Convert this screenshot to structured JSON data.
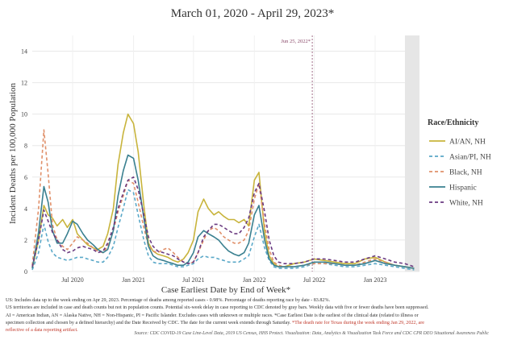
{
  "chart_data": {
    "type": "line",
    "title": "March 01, 2020 - April 29, 2023*",
    "xlabel": "Case Earliest Date by End of Week*",
    "ylabel": "Incident Deaths per 100,000 Population",
    "ylim": [
      0,
      15
    ],
    "yticks": [
      0,
      2,
      4,
      6,
      8,
      10,
      12,
      14
    ],
    "xlim": [
      "2020-03-01",
      "2023-05-15"
    ],
    "xticks": [
      {
        "date": "2020-07-01",
        "label": "Jul 2020"
      },
      {
        "date": "2021-01-01",
        "label": "Jan 2021"
      },
      {
        "date": "2021-07-01",
        "label": "Jul 2021"
      },
      {
        "date": "2022-01-01",
        "label": "Jan 2022"
      },
      {
        "date": "2022-07-01",
        "label": "Jul 2022"
      },
      {
        "date": "2023-01-01",
        "label": "Jan 2023"
      }
    ],
    "grid": true,
    "legend_position": "right",
    "legend_title": "Race/Ethnicity",
    "annotation": {
      "date": "2022-06-25",
      "label": "Jun 25, 2022*"
    },
    "shaded_region": {
      "start": "2023-04-01",
      "end": "2023-05-15"
    },
    "x": [
      "2020-03-01",
      "2020-03-20",
      "2020-04-05",
      "2020-04-18",
      "2020-05-01",
      "2020-05-15",
      "2020-06-01",
      "2020-06-15",
      "2020-07-01",
      "2020-07-15",
      "2020-08-01",
      "2020-08-15",
      "2020-09-01",
      "2020-09-15",
      "2020-10-01",
      "2020-10-15",
      "2020-11-01",
      "2020-11-15",
      "2020-12-01",
      "2020-12-15",
      "2021-01-01",
      "2021-01-15",
      "2021-02-01",
      "2021-02-15",
      "2021-03-01",
      "2021-03-15",
      "2021-04-01",
      "2021-04-15",
      "2021-05-01",
      "2021-05-15",
      "2021-06-01",
      "2021-06-15",
      "2021-07-01",
      "2021-07-15",
      "2021-08-01",
      "2021-08-15",
      "2021-09-01",
      "2021-09-15",
      "2021-10-01",
      "2021-10-15",
      "2021-11-01",
      "2021-11-15",
      "2021-12-01",
      "2021-12-15",
      "2022-01-01",
      "2022-01-15",
      "2022-02-01",
      "2022-02-15",
      "2022-03-01",
      "2022-03-15",
      "2022-04-01",
      "2022-05-01",
      "2022-06-01",
      "2022-07-01",
      "2022-08-01",
      "2022-09-01",
      "2022-10-01",
      "2022-11-01",
      "2022-12-01",
      "2023-01-01",
      "2023-02-01",
      "2023-03-01",
      "2023-04-01",
      "2023-04-29"
    ],
    "series": [
      {
        "name": "AI/AN, NH",
        "color": "#c8b43c",
        "dash": "solid",
        "values": [
          0.2,
          2.0,
          4.2,
          3.6,
          3.4,
          2.9,
          3.3,
          2.8,
          3.3,
          2.4,
          2.0,
          1.7,
          1.5,
          1.4,
          1.6,
          2.4,
          4.0,
          6.8,
          8.8,
          10.0,
          9.4,
          7.6,
          4.2,
          1.8,
          1.3,
          1.1,
          1.0,
          0.9,
          0.7,
          0.6,
          0.8,
          1.2,
          2.0,
          3.8,
          4.6,
          4.0,
          3.6,
          3.8,
          3.5,
          3.3,
          3.3,
          3.1,
          3.3,
          2.9,
          5.8,
          6.3,
          2.5,
          1.0,
          0.5,
          0.3,
          0.3,
          0.5,
          0.6,
          0.8,
          0.7,
          0.6,
          0.5,
          0.5,
          0.8,
          0.9,
          0.6,
          0.4,
          0.3,
          0.2
        ]
      },
      {
        "name": "Asian/PI, NH",
        "color": "#5aa8c8",
        "dash": "4,3",
        "values": [
          0.1,
          1.2,
          3.0,
          1.9,
          1.2,
          0.9,
          0.8,
          0.7,
          0.8,
          0.9,
          0.9,
          0.8,
          0.7,
          0.6,
          0.6,
          0.9,
          1.6,
          2.8,
          4.0,
          5.2,
          5.0,
          3.6,
          2.0,
          1.0,
          0.6,
          0.5,
          0.5,
          0.5,
          0.4,
          0.3,
          0.3,
          0.4,
          0.5,
          0.8,
          1.0,
          0.9,
          0.9,
          0.8,
          0.7,
          0.6,
          0.6,
          0.6,
          0.8,
          1.0,
          2.2,
          3.0,
          1.5,
          0.7,
          0.3,
          0.2,
          0.2,
          0.2,
          0.3,
          0.5,
          0.5,
          0.4,
          0.3,
          0.3,
          0.4,
          0.5,
          0.4,
          0.3,
          0.2,
          0.1
        ]
      },
      {
        "name": "Black, NH",
        "color": "#e0906a",
        "dash": "4,3",
        "values": [
          0.4,
          4.0,
          9.0,
          6.2,
          3.0,
          2.0,
          1.6,
          1.4,
          1.8,
          2.2,
          2.0,
          1.8,
          1.5,
          1.3,
          1.2,
          1.6,
          2.6,
          3.8,
          4.8,
          5.8,
          5.6,
          4.4,
          2.8,
          1.6,
          1.3,
          1.2,
          1.4,
          1.5,
          1.2,
          0.9,
          0.6,
          0.5,
          0.6,
          1.2,
          2.0,
          2.6,
          2.8,
          2.6,
          2.2,
          2.0,
          1.8,
          1.8,
          2.0,
          2.6,
          4.6,
          5.6,
          3.0,
          1.4,
          0.6,
          0.4,
          0.3,
          0.3,
          0.4,
          0.5,
          0.5,
          0.5,
          0.4,
          0.4,
          0.6,
          0.8,
          0.6,
          0.4,
          0.3,
          0.2
        ]
      },
      {
        "name": "Hispanic",
        "color": "#3a8090",
        "dash": "solid",
        "values": [
          0.2,
          2.5,
          5.4,
          4.4,
          2.6,
          1.8,
          1.8,
          2.4,
          3.2,
          3.0,
          2.4,
          2.0,
          1.7,
          1.4,
          1.2,
          1.4,
          2.6,
          4.8,
          6.4,
          7.4,
          7.2,
          5.8,
          3.4,
          1.6,
          1.0,
          0.8,
          0.7,
          0.6,
          0.5,
          0.4,
          0.4,
          0.6,
          1.2,
          2.2,
          2.6,
          2.4,
          2.2,
          2.0,
          1.6,
          1.3,
          1.1,
          1.0,
          1.2,
          1.8,
          3.6,
          4.2,
          2.0,
          0.8,
          0.4,
          0.3,
          0.3,
          0.3,
          0.4,
          0.6,
          0.6,
          0.5,
          0.4,
          0.4,
          0.5,
          0.7,
          0.5,
          0.4,
          0.3,
          0.2
        ]
      },
      {
        "name": "White, NH",
        "color": "#6a3a80",
        "dash": "4,3",
        "values": [
          0.3,
          2.0,
          3.9,
          3.2,
          2.5,
          2.0,
          1.4,
          1.2,
          1.3,
          1.5,
          1.6,
          1.5,
          1.4,
          1.2,
          1.3,
          1.8,
          2.8,
          4.0,
          5.0,
          5.8,
          6.0,
          5.2,
          3.6,
          2.2,
          1.6,
          1.3,
          1.2,
          1.1,
          1.0,
          0.8,
          0.6,
          0.5,
          0.6,
          1.2,
          2.2,
          2.6,
          3.0,
          3.0,
          2.8,
          2.6,
          2.4,
          2.4,
          2.8,
          3.4,
          5.0,
          5.6,
          3.8,
          2.0,
          1.0,
          0.6,
          0.5,
          0.5,
          0.6,
          0.8,
          0.8,
          0.7,
          0.6,
          0.6,
          0.8,
          1.0,
          0.8,
          0.6,
          0.5,
          0.3
        ]
      }
    ]
  },
  "footnotes": {
    "line1": "US: Includes data up to the week ending on Apr 29, 2023. Percentage of deaths among reported cases - 0.98%. Percentage of deaths reporting race by date - 83.82%.",
    "line2": "US territories are included in case and death counts but not in population counts. Potential six-week delay in case reporting to CDC denoted by gray bars. Weekly data with five or fewer deaths have been suppressed.",
    "line3": "AI = American Indian, AN = Alaska Native, NH = Non-Hispanic, PI = Pacific Islander. Excludes cases with unknown or multiple races. *Case Earliest Date is the earliest of the clinical date (related to illness or",
    "line4_start": "specimen collection and chosen by a defined hierarchy) and the Date Received by CDC. The date for the current week extends through Saturday.",
    "line4_red": "*The death rate for Texas during the week ending Jan 29, 2022, are",
    "line5_red": "reflective of a data reporting artifact.",
    "source": "Source: CDC COVID-19 Case Line-Level Data, 2019 US Census, HHS Protect. Visualization: Data, Analytics & Visualization Task Force and CDC CPR DEO Situational Awareness Public"
  }
}
